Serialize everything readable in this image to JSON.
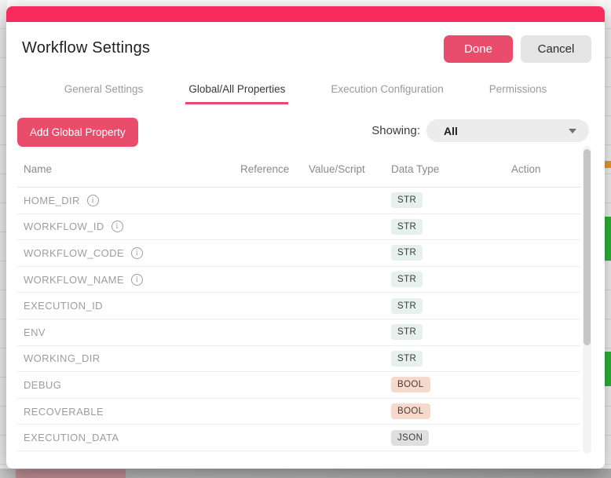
{
  "modal": {
    "title": "Workflow Settings",
    "done_label": "Done",
    "cancel_label": "Cancel",
    "tabs": [
      {
        "label": "General Settings",
        "active": false
      },
      {
        "label": "Global/All Properties",
        "active": true
      },
      {
        "label": "Execution Configuration",
        "active": false
      },
      {
        "label": "Permissions",
        "active": false
      }
    ],
    "add_button_label": "Add Global Property",
    "showing_label": "Showing:",
    "showing_value": "All",
    "table": {
      "headers": [
        "Name",
        "Reference",
        "Value/Script",
        "Data Type",
        "Action"
      ],
      "rows": [
        {
          "name": "HOME_DIR",
          "info": true,
          "reference": "",
          "value_script": "",
          "data_type": "STR",
          "action": ""
        },
        {
          "name": "WORKFLOW_ID",
          "info": true,
          "reference": "",
          "value_script": "",
          "data_type": "STR",
          "action": ""
        },
        {
          "name": "WORKFLOW_CODE",
          "info": true,
          "reference": "",
          "value_script": "",
          "data_type": "STR",
          "action": ""
        },
        {
          "name": "WORKFLOW_NAME",
          "info": true,
          "reference": "",
          "value_script": "",
          "data_type": "STR",
          "action": ""
        },
        {
          "name": "EXECUTION_ID",
          "info": false,
          "reference": "",
          "value_script": "",
          "data_type": "STR",
          "action": ""
        },
        {
          "name": "ENV",
          "info": false,
          "reference": "",
          "value_script": "",
          "data_type": "STR",
          "action": ""
        },
        {
          "name": "WORKING_DIR",
          "info": false,
          "reference": "",
          "value_script": "",
          "data_type": "STR",
          "action": ""
        },
        {
          "name": "DEBUG",
          "info": false,
          "reference": "",
          "value_script": "",
          "data_type": "BOOL",
          "action": ""
        },
        {
          "name": "RECOVERABLE",
          "info": false,
          "reference": "",
          "value_script": "",
          "data_type": "BOOL",
          "action": ""
        },
        {
          "name": "EXECUTION_DATA",
          "info": false,
          "reference": "",
          "value_script": "",
          "data_type": "JSON",
          "action": ""
        }
      ]
    }
  },
  "colors": {
    "accent_bar": "#f72b5c",
    "primary_button": "#ea4c6b",
    "tab_underline": "#e8486b",
    "badges": {
      "STR": {
        "bg": "#e6f0ed",
        "text": "#3a3a3a"
      },
      "BOOL": {
        "bg": "#f5d9cc",
        "text": "#4a3a34"
      },
      "JSON": {
        "bg": "#dfdfdf",
        "text": "#3a3a3a"
      }
    }
  }
}
